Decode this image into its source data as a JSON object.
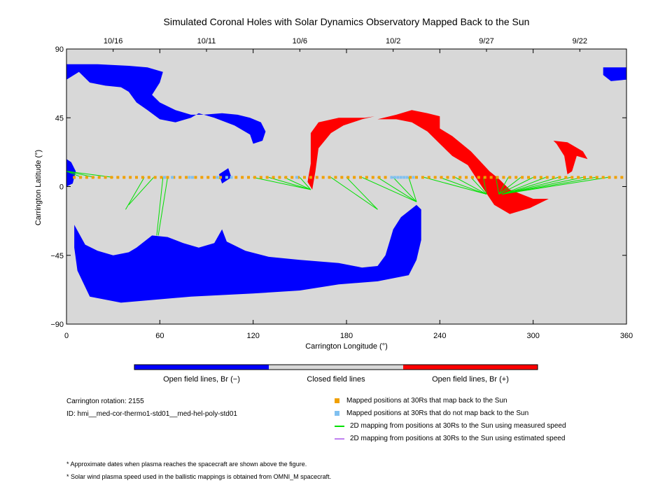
{
  "title": "Simulated Coronal Holes with Solar Dynamics Observatory Mapped Back to the Sun",
  "colors": {
    "negative": "#0000ff",
    "closed": "#d8d8d8",
    "positive": "#ff0000",
    "mapped": "#f0a000",
    "unmapped": "#80c0f0",
    "measured": "#00e000",
    "estimated": "#c080f0"
  },
  "chart_data": {
    "type": "map",
    "xlabel": "Carrington Longitude (°)",
    "ylabel": "Carrington Latitude (°)",
    "xlim": [
      0,
      360
    ],
    "ylim": [
      -90,
      90
    ],
    "xticks": [
      0,
      60,
      120,
      180,
      240,
      300,
      360
    ],
    "yticks": [
      -90,
      -45,
      0,
      45,
      90
    ],
    "date_ticks": [
      {
        "label": "10/16",
        "lon": 30
      },
      {
        "label": "10/11",
        "lon": 90
      },
      {
        "label": "10/6",
        "lon": 150
      },
      {
        "label": "10/2",
        "lon": 210
      },
      {
        "label": "9/27",
        "lon": 270
      },
      {
        "label": "9/22",
        "lon": 330
      }
    ],
    "colorbar": [
      {
        "label": "Open field lines, Br (−)",
        "color": "#0000ff"
      },
      {
        "label": "Closed field lines",
        "color": "#d8d8d8"
      },
      {
        "label": "Open field lines, Br (+)",
        "color": "#ff0000"
      }
    ],
    "regions": [
      {
        "name": "Negative polarity coronal hole (north cap)",
        "polarity": "negative",
        "points": [
          [
            0,
            80
          ],
          [
            20,
            80
          ],
          [
            40,
            79
          ],
          [
            52,
            78
          ],
          [
            62,
            75
          ],
          [
            60,
            68
          ],
          [
            55,
            60
          ],
          [
            60,
            55
          ],
          [
            70,
            50
          ],
          [
            80,
            47
          ],
          [
            88,
            47
          ],
          [
            100,
            48
          ],
          [
            110,
            47
          ],
          [
            118,
            45
          ],
          [
            125,
            42
          ],
          [
            128,
            36
          ],
          [
            126,
            30
          ],
          [
            120,
            28
          ],
          [
            118,
            34
          ],
          [
            108,
            40
          ],
          [
            95,
            45
          ],
          [
            85,
            48
          ],
          [
            80,
            45
          ],
          [
            70,
            42
          ],
          [
            60,
            44
          ],
          [
            52,
            50
          ],
          [
            45,
            55
          ],
          [
            40,
            62
          ],
          [
            35,
            65
          ],
          [
            25,
            66
          ],
          [
            15,
            68
          ],
          [
            8,
            75
          ],
          [
            0,
            70
          ]
        ]
      },
      {
        "name": "Negative polarity coronal hole (northeast)",
        "polarity": "negative",
        "points": [
          [
            345,
            78
          ],
          [
            360,
            78
          ],
          [
            360,
            70
          ],
          [
            350,
            69
          ],
          [
            345,
            73
          ]
        ]
      },
      {
        "name": "Negative polarity coronal hole (south cap)",
        "polarity": "negative",
        "points": [
          [
            5,
            -25
          ],
          [
            12,
            -38
          ],
          [
            20,
            -42
          ],
          [
            30,
            -45
          ],
          [
            40,
            -43
          ],
          [
            45,
            -40
          ],
          [
            55,
            -32
          ],
          [
            65,
            -33
          ],
          [
            75,
            -37
          ],
          [
            85,
            -40
          ],
          [
            95,
            -37
          ],
          [
            100,
            -28
          ],
          [
            103,
            -36
          ],
          [
            115,
            -42
          ],
          [
            130,
            -46
          ],
          [
            150,
            -48
          ],
          [
            175,
            -50
          ],
          [
            190,
            -53
          ],
          [
            200,
            -52
          ],
          [
            205,
            -45
          ],
          [
            208,
            -35
          ],
          [
            210,
            -28
          ],
          [
            215,
            -20
          ],
          [
            225,
            -12
          ],
          [
            228,
            -15
          ],
          [
            228,
            -35
          ],
          [
            225,
            -48
          ],
          [
            220,
            -58
          ],
          [
            200,
            -62
          ],
          [
            175,
            -64
          ],
          [
            150,
            -68
          ],
          [
            120,
            -70
          ],
          [
            80,
            -72
          ],
          [
            35,
            -76
          ],
          [
            15,
            -72
          ],
          [
            7,
            -55
          ],
          [
            5,
            -40
          ]
        ]
      },
      {
        "name": "Negative polarity coronal hole (eastern limb)",
        "polarity": "negative",
        "points": [
          [
            0,
            18
          ],
          [
            3,
            16
          ],
          [
            6,
            10
          ],
          [
            4,
            2
          ],
          [
            0,
            0
          ]
        ]
      },
      {
        "name": "Negative polarity coronal hole (small)",
        "polarity": "negative",
        "points": [
          [
            98,
            8
          ],
          [
            104,
            12
          ],
          [
            106,
            6
          ],
          [
            100,
            2
          ]
        ]
      },
      {
        "name": "Positive polarity coronal hole (north, 155–190)",
        "polarity": "positive",
        "points": [
          [
            155,
            3
          ],
          [
            157,
            15
          ],
          [
            157,
            35
          ],
          [
            162,
            42
          ],
          [
            175,
            45
          ],
          [
            192,
            45
          ],
          [
            198,
            46
          ],
          [
            190,
            44
          ],
          [
            178,
            40
          ],
          [
            170,
            35
          ],
          [
            162,
            25
          ],
          [
            160,
            10
          ],
          [
            158,
            -2
          ]
        ]
      },
      {
        "name": "Positive polarity coronal hole (trans-equatorial, 200–320)",
        "polarity": "positive",
        "points": [
          [
            200,
            44
          ],
          [
            212,
            47
          ],
          [
            222,
            50
          ],
          [
            232,
            48
          ],
          [
            240,
            46
          ],
          [
            240,
            38
          ],
          [
            248,
            33
          ],
          [
            260,
            23
          ],
          [
            272,
            10
          ],
          [
            278,
            5
          ],
          [
            285,
            -2
          ],
          [
            300,
            -8
          ],
          [
            310,
            -8
          ],
          [
            298,
            -14
          ],
          [
            285,
            -18
          ],
          [
            275,
            -12
          ],
          [
            265,
            3
          ],
          [
            258,
            14
          ],
          [
            248,
            20
          ],
          [
            240,
            28
          ],
          [
            232,
            36
          ],
          [
            222,
            42
          ],
          [
            212,
            44
          ]
        ]
      },
      {
        "name": "Positive polarity coronal hole (northwest, 313–335)",
        "polarity": "positive",
        "points": [
          [
            313,
            30
          ],
          [
            322,
            29
          ],
          [
            332,
            23
          ],
          [
            335,
            18
          ],
          [
            328,
            20
          ],
          [
            325,
            10
          ],
          [
            322,
            8
          ],
          [
            320,
            20
          ],
          [
            315,
            28
          ]
        ]
      }
    ],
    "mapped_back": {
      "lat": 6,
      "lons": [
        5,
        9,
        13,
        17,
        21,
        25,
        29,
        33,
        37,
        41,
        45,
        49,
        53,
        57,
        61,
        65,
        69,
        73,
        77,
        83,
        87,
        91,
        95,
        99,
        109,
        113,
        117,
        121,
        125,
        129,
        133,
        137,
        141,
        145,
        149,
        153,
        157,
        161,
        165,
        169,
        173,
        177,
        181,
        185,
        189,
        193,
        197,
        201,
        205,
        221,
        225,
        229,
        233,
        237,
        241,
        245,
        249,
        253,
        257,
        261,
        265,
        269,
        273,
        277,
        281,
        285,
        289,
        293,
        297,
        301,
        305,
        309,
        313,
        317,
        321,
        325,
        329,
        333,
        337,
        341,
        345,
        349,
        353,
        357
      ]
    },
    "not_mapped_back": {
      "lat": 6,
      "lons": [
        63,
        68,
        79,
        81,
        97,
        103,
        106,
        148,
        209,
        211,
        213,
        215,
        217,
        219,
        223
      ]
    },
    "measured_speed_mappings": [
      {
        "from": [
          0,
          10
        ],
        "to": [
          10,
          6
        ]
      },
      {
        "from": [
          0,
          10
        ],
        "to": [
          18,
          6
        ]
      },
      {
        "from": [
          0,
          10
        ],
        "to": [
          30,
          6
        ]
      },
      {
        "from": [
          38,
          -15
        ],
        "to": [
          50,
          6
        ]
      },
      {
        "from": [
          40,
          -12
        ],
        "to": [
          56,
          6
        ]
      },
      {
        "from": [
          58,
          -32
        ],
        "to": [
          62,
          6
        ]
      },
      {
        "from": [
          59,
          -32
        ],
        "to": [
          65,
          6
        ]
      },
      {
        "from": [
          98,
          5
        ],
        "to": [
          100,
          6
        ]
      },
      {
        "from": [
          157,
          -2
        ],
        "to": [
          120,
          6
        ]
      },
      {
        "from": [
          157,
          -2
        ],
        "to": [
          130,
          6
        ]
      },
      {
        "from": [
          157,
          -2
        ],
        "to": [
          140,
          6
        ]
      },
      {
        "from": [
          157,
          -2
        ],
        "to": [
          150,
          6
        ]
      },
      {
        "from": [
          200,
          -15
        ],
        "to": [
          170,
          6
        ]
      },
      {
        "from": [
          200,
          -15
        ],
        "to": [
          180,
          6
        ]
      },
      {
        "from": [
          225,
          -10
        ],
        "to": [
          190,
          6
        ]
      },
      {
        "from": [
          225,
          -10
        ],
        "to": [
          200,
          6
        ]
      },
      {
        "from": [
          225,
          -10
        ],
        "to": [
          210,
          6
        ]
      },
      {
        "from": [
          225,
          -10
        ],
        "to": [
          220,
          6
        ]
      },
      {
        "from": [
          270,
          -5
        ],
        "to": [
          230,
          6
        ]
      },
      {
        "from": [
          270,
          -5
        ],
        "to": [
          240,
          6
        ]
      },
      {
        "from": [
          270,
          -5
        ],
        "to": [
          250,
          6
        ]
      },
      {
        "from": [
          270,
          -5
        ],
        "to": [
          260,
          6
        ]
      },
      {
        "from": [
          270,
          -5
        ],
        "to": [
          268,
          6
        ]
      },
      {
        "from": [
          278,
          -5
        ],
        "to": [
          276,
          6
        ]
      },
      {
        "from": [
          278,
          -5
        ],
        "to": [
          284,
          6
        ]
      },
      {
        "from": [
          278,
          -5
        ],
        "to": [
          292,
          6
        ]
      },
      {
        "from": [
          278,
          -5
        ],
        "to": [
          300,
          6
        ]
      },
      {
        "from": [
          280,
          -5
        ],
        "to": [
          308,
          6
        ]
      },
      {
        "from": [
          280,
          -5
        ],
        "to": [
          316,
          6
        ]
      },
      {
        "from": [
          280,
          -5
        ],
        "to": [
          324,
          6
        ]
      },
      {
        "from": [
          280,
          -5
        ],
        "to": [
          332,
          6
        ]
      },
      {
        "from": [
          280,
          -5
        ],
        "to": [
          340,
          6
        ]
      },
      {
        "from": [
          280,
          -5
        ],
        "to": [
          348,
          6
        ]
      }
    ],
    "estimated_speed_mappings": []
  },
  "info": {
    "rotation": "Carrington rotation: 2155",
    "id": "ID: hmi__med-cor-thermo1-std01__med-hel-poly-std01"
  },
  "legend": [
    {
      "kind": "square",
      "color": "#f0a000",
      "label": "Mapped positions at 30Rs that map back to the Sun"
    },
    {
      "kind": "square",
      "color": "#80c0f0",
      "label": "Mapped positions at 30Rs that do not map back to the Sun"
    },
    {
      "kind": "line",
      "color": "#00e000",
      "label": "2D mapping from positions at 30Rs to the Sun using measured speed"
    },
    {
      "kind": "line",
      "color": "#c080f0",
      "label": "2D mapping from positions at 30Rs to the Sun using estimated speed"
    }
  ],
  "notes": [
    "* Approximate dates when plasma reaches the spacecraft are shown above the figure.",
    "* Solar wind plasma speed used in the ballistic mappings is obtained from OMNI_M spacecraft."
  ]
}
